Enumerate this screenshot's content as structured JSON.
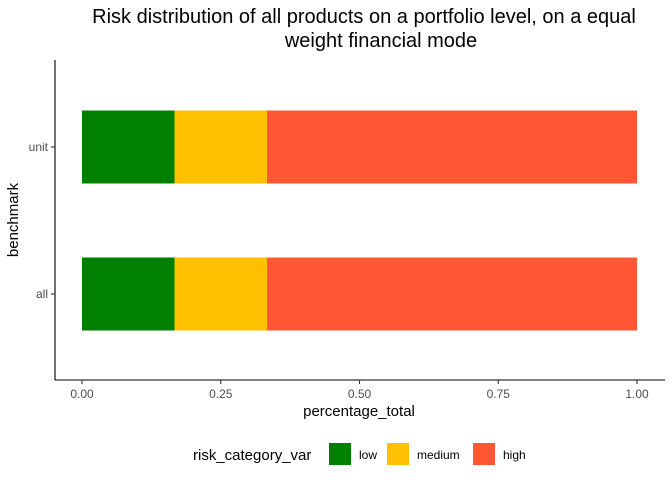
{
  "chart_data": {
    "type": "bar",
    "orientation": "horizontal",
    "stacked": true,
    "title_lines": [
      "Risk distribution of all products on a portfolio level, on a equal",
      "weight financial mode"
    ],
    "xlabel": "percentage_total",
    "ylabel": "benchmark",
    "categories": [
      "unit",
      "all"
    ],
    "xlim": [
      0,
      1
    ],
    "x_ticks": [
      0.0,
      0.25,
      0.5,
      0.75,
      1.0
    ],
    "x_tick_labels": [
      "0.00",
      "0.25",
      "0.50",
      "0.75",
      "1.00"
    ],
    "series": [
      {
        "name": "low",
        "color": "#008000",
        "values": [
          0.1667,
          0.1667
        ]
      },
      {
        "name": "medium",
        "color": "#FFC000",
        "values": [
          0.1667,
          0.1667
        ]
      },
      {
        "name": "high",
        "color": "#FF5733",
        "values": [
          0.6667,
          0.6667
        ]
      }
    ],
    "legend": {
      "title": "risk_category_var",
      "position": "bottom"
    },
    "grid": false
  }
}
